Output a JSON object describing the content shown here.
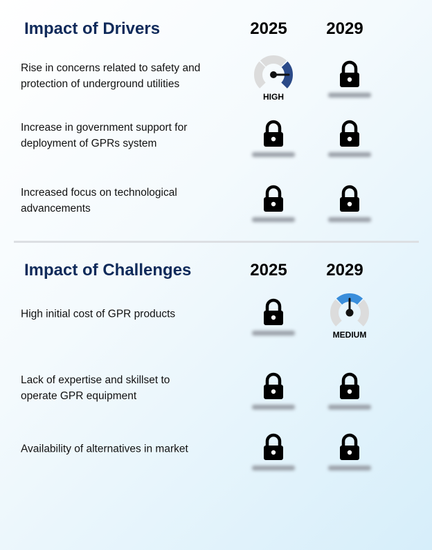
{
  "sections": [
    {
      "title": "Impact of Drivers",
      "years": [
        "2025",
        "2029"
      ],
      "rows": [
        {
          "label": "Rise in concerns related to safety and protection of underground utilities",
          "cells": [
            {
              "rating": "HIGH"
            },
            {
              "locked": true
            }
          ]
        },
        {
          "label": "Increase in government support for deployment of GPRs system",
          "cells": [
            {
              "locked": true
            },
            {
              "locked": true
            }
          ]
        },
        {
          "label": "Increased focus on technological advancements",
          "cells": [
            {
              "locked": true
            },
            {
              "locked": true
            }
          ]
        }
      ]
    },
    {
      "title": "Impact of Challenges",
      "years": [
        "2025",
        "2029"
      ],
      "rows": [
        {
          "label": "High initial cost of GPR products",
          "cells": [
            {
              "locked": true
            },
            {
              "rating": "MEDIUM"
            }
          ]
        },
        {
          "label": "Lack of expertise and skillset to operate GPR equipment",
          "cells": [
            {
              "locked": true
            },
            {
              "locked": true
            }
          ]
        },
        {
          "label": "Availability of alternatives in market",
          "cells": [
            {
              "locked": true
            },
            {
              "locked": true
            }
          ]
        }
      ]
    }
  ]
}
